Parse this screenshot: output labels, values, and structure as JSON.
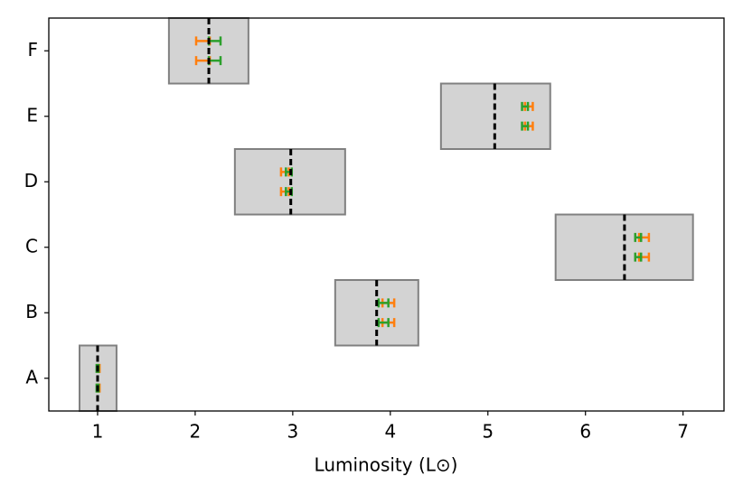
{
  "chart_data": {
    "type": "errorbar",
    "xlabel": "Luminosity (L⊙)",
    "categories": [
      "A",
      "B",
      "C",
      "D",
      "E",
      "F"
    ],
    "xlim": [
      0.5,
      7.42
    ],
    "xticks": [
      1,
      2,
      3,
      4,
      5,
      6,
      7
    ],
    "boxes": {
      "color": "#d3d3d3",
      "edge_color": "#808080",
      "line_color": "#000000",
      "low": [
        0.815,
        3.435,
        5.694,
        2.407,
        4.519,
        1.731
      ],
      "high": [
        1.194,
        4.287,
        7.102,
        3.537,
        5.639,
        2.546
      ],
      "center": [
        1.0,
        3.86,
        6.4,
        2.98,
        5.07,
        2.14
      ]
    },
    "series": [
      {
        "color": "#ff7f0e",
        "values": [
          1.01,
          3.98,
          6.6,
          2.92,
          5.42,
          2.08
        ],
        "errors": [
          0.01,
          0.06,
          0.05,
          0.04,
          0.04,
          0.07
        ]
      },
      {
        "color": "#2ca02c",
        "values": [
          1.0,
          3.93,
          6.54,
          2.96,
          5.38,
          2.2
        ],
        "errors": [
          0.01,
          0.05,
          0.03,
          0.03,
          0.03,
          0.06
        ]
      },
      {
        "color": "#ff7f0e",
        "values": [
          1.01,
          3.98,
          6.6,
          2.92,
          5.42,
          2.08
        ],
        "errors": [
          0.01,
          0.06,
          0.05,
          0.04,
          0.04,
          0.07
        ]
      },
      {
        "color": "#2ca02c",
        "values": [
          1.0,
          3.93,
          6.54,
          2.96,
          5.38,
          2.2
        ],
        "errors": [
          0.01,
          0.05,
          0.03,
          0.03,
          0.03,
          0.06
        ]
      }
    ]
  }
}
